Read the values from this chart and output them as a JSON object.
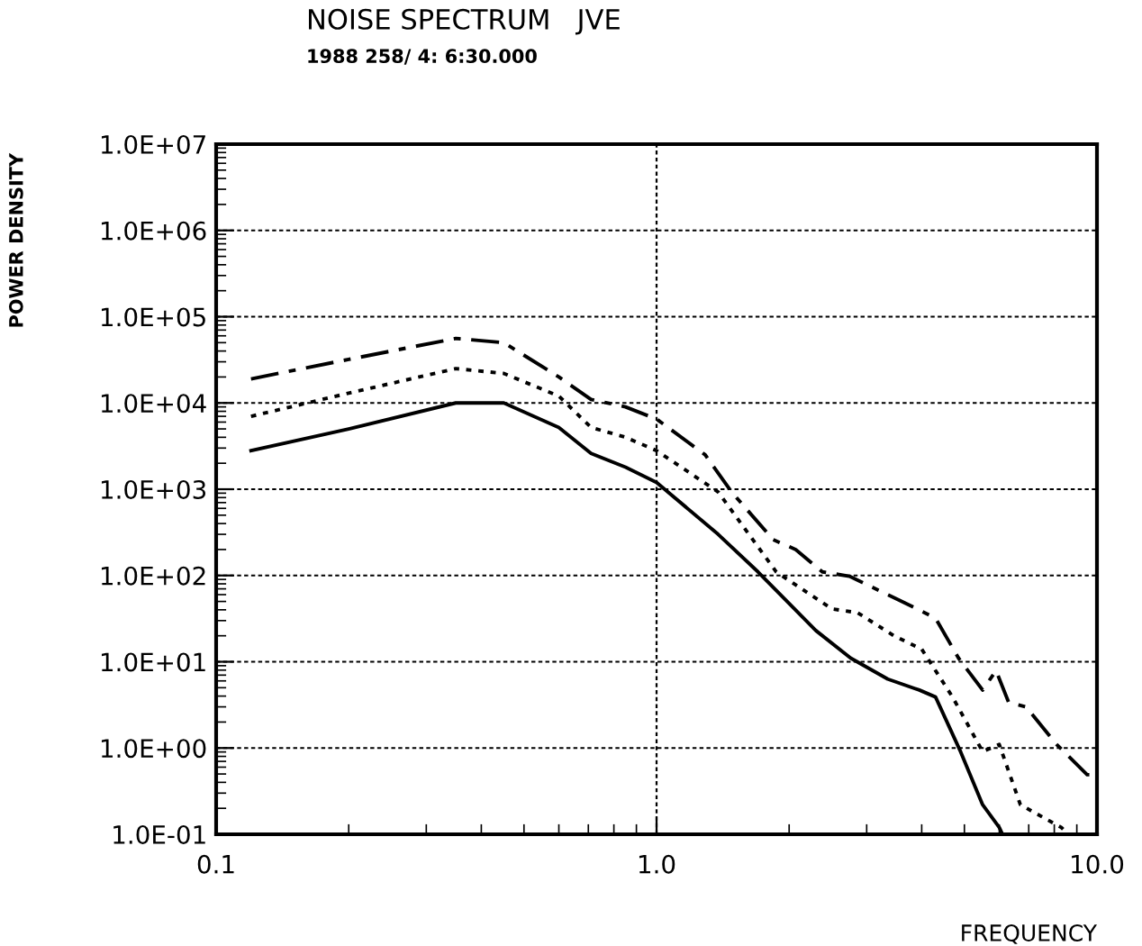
{
  "chart_data": {
    "type": "line",
    "title": "NOISE SPECTRUM   JVE",
    "subtitle": "1988 258/ 4: 6:30.000",
    "xlabel": "FREQUENCY",
    "ylabel": "POWER DENSITY",
    "log": "xy",
    "grid": true,
    "xlim": [
      0.1,
      10
    ],
    "xticks": [
      {
        "value": 0.1,
        "label": "0.1"
      },
      {
        "value": 1,
        "label": "1.0"
      },
      {
        "value": 10,
        "label": "10.0"
      }
    ],
    "ylim": [
      0.1,
      10000000
    ],
    "yticks": [
      {
        "value": 0.1,
        "label": "1.0E-01"
      },
      {
        "value": 1,
        "label": "1.0E+00"
      },
      {
        "value": 10,
        "label": "1.0E+01"
      },
      {
        "value": 100,
        "label": "1.0E+02"
      },
      {
        "value": 1000,
        "label": "1.0E+03"
      },
      {
        "value": 10000,
        "label": "1.0E+04"
      },
      {
        "value": 100000,
        "label": "1.0E+05"
      },
      {
        "value": 1000000,
        "label": "1.0E+06"
      },
      {
        "value": 10000000,
        "label": "1.0E+07"
      }
    ],
    "series": [
      {
        "color": "#000000",
        "line_style": "dashed",
        "x": [
          0.12,
          0.2,
          0.35,
          0.45,
          0.6,
          0.71,
          0.85,
          1,
          1.29,
          1.48,
          1.84,
          2.07,
          2.38,
          2.74,
          3.55,
          4.3,
          4.85,
          5.5,
          5.9,
          6.3,
          6.9,
          8.1,
          9.5,
          10
        ],
        "values": [
          19000,
          32000,
          56000,
          50000,
          20000,
          11000,
          9000,
          6500,
          2500,
          930,
          260,
          200,
          110,
          98,
          52,
          32,
          11,
          4.7,
          7.9,
          3.4,
          3.0,
          1.1,
          0.49,
          0.49
        ]
      },
      {
        "color": "#000000",
        "line_style": "dotted",
        "x": [
          0.12,
          0.2,
          0.35,
          0.45,
          0.6,
          0.71,
          0.85,
          1,
          1.38,
          1.87,
          2.5,
          2.86,
          3.46,
          4.0,
          4.7,
          5.5,
          6.0,
          6.7,
          8.3,
          8.6
        ],
        "values": [
          7000,
          13000,
          25000,
          22000,
          12000,
          5200,
          4000,
          2800,
          930,
          110,
          41,
          37,
          20,
          14,
          3.9,
          0.91,
          1.1,
          0.22,
          0.12,
          0.1
        ]
      },
      {
        "color": "#000000",
        "line_style": "solid",
        "x": [
          0.12,
          0.2,
          0.35,
          0.45,
          0.6,
          0.71,
          0.85,
          1,
          1.38,
          1.7,
          2.3,
          2.76,
          3.35,
          3.95,
          4.3,
          4.9,
          5.5,
          6.0,
          6.1
        ],
        "values": [
          2800,
          5000,
          10000,
          10000,
          5200,
          2600,
          1800,
          1200,
          300,
          110,
          23,
          11,
          6.3,
          4.7,
          3.9,
          0.91,
          0.22,
          0.12,
          0.1
        ]
      }
    ]
  }
}
